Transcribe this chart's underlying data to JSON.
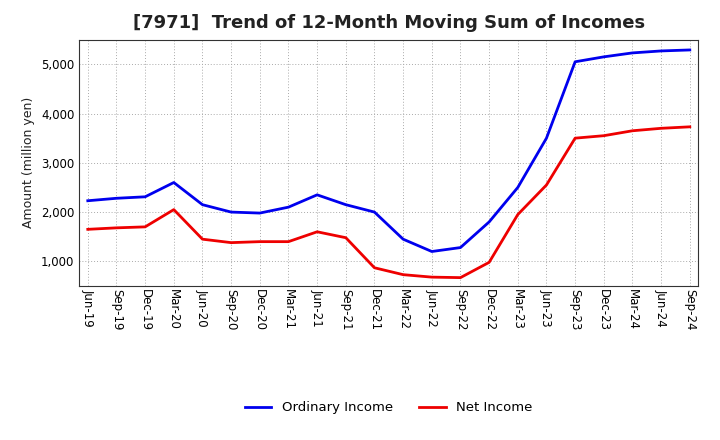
{
  "title": "[7971]  Trend of 12-Month Moving Sum of Incomes",
  "ylabel": "Amount (million yen)",
  "background_color": "#ffffff",
  "plot_bg_color": "#ffffff",
  "grid_color": "#aaaaaa",
  "ordinary_income_color": "#0000ee",
  "net_income_color": "#ee0000",
  "line_width": 2.0,
  "x_labels": [
    "Jun-19",
    "Sep-19",
    "Dec-19",
    "Mar-20",
    "Jun-20",
    "Sep-20",
    "Dec-20",
    "Mar-21",
    "Jun-21",
    "Sep-21",
    "Dec-21",
    "Mar-22",
    "Jun-22",
    "Sep-22",
    "Dec-22",
    "Mar-23",
    "Jun-23",
    "Sep-23",
    "Dec-23",
    "Mar-24",
    "Jun-24",
    "Sep-24"
  ],
  "ordinary_income": [
    2230,
    2280,
    2310,
    2600,
    2150,
    2000,
    1980,
    2100,
    2350,
    2150,
    2000,
    1450,
    1200,
    1280,
    1800,
    2500,
    3500,
    5050,
    5150,
    5230,
    5270,
    5290
  ],
  "net_income": [
    1650,
    1680,
    1700,
    2050,
    1450,
    1380,
    1400,
    1400,
    1600,
    1480,
    870,
    730,
    680,
    670,
    980,
    1950,
    2550,
    3500,
    3550,
    3650,
    3700,
    3730
  ],
  "ylim": [
    500,
    5500
  ],
  "yticks": [
    1000,
    2000,
    3000,
    4000,
    5000
  ],
  "title_fontsize": 13,
  "label_fontsize": 9,
  "tick_fontsize": 8.5,
  "legend_fontsize": 9.5,
  "title_color": "#222222"
}
